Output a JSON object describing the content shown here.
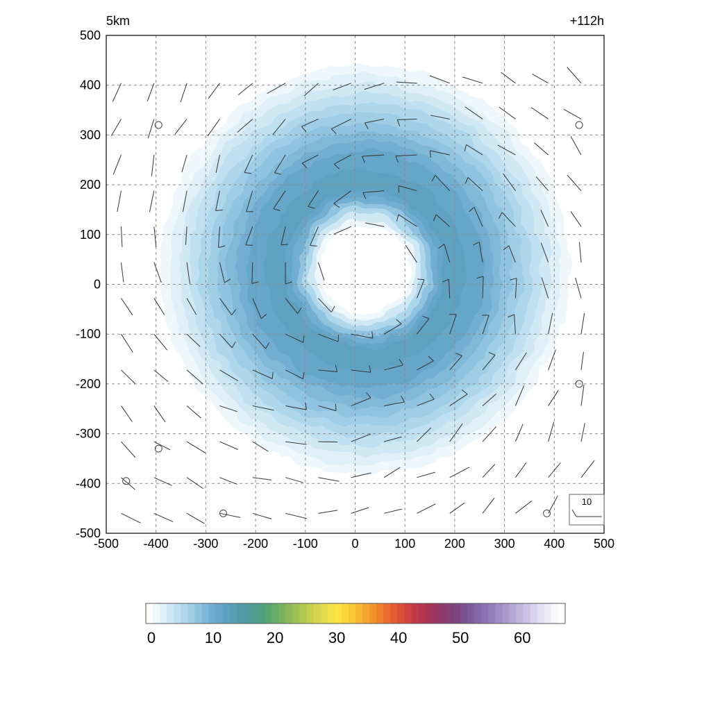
{
  "chart_data": {
    "type": "contour",
    "title_left": "5km",
    "title_right": "+112h",
    "xlim": [
      -500,
      500
    ],
    "ylim": [
      -500,
      500
    ],
    "x_ticks": [
      -500,
      -400,
      -300,
      -200,
      -100,
      0,
      100,
      200,
      300,
      400,
      500
    ],
    "y_ticks": [
      500,
      400,
      300,
      200,
      100,
      0,
      -100,
      -200,
      -300,
      -400,
      -500
    ],
    "grid": "dashed",
    "field": {
      "shape": "annular ring",
      "center": [
        20,
        30
      ],
      "eye_radius": 90,
      "peak_radius": 200,
      "peak_value": 13,
      "outer_radius": 430
    },
    "wind_barbs": "cyclonic circulation, counter-clockwise rotation around the center",
    "reference_barb": {
      "label": "10"
    },
    "colorbar": {
      "min": 0,
      "max": 66,
      "tick_labels": [
        "0",
        "10",
        "20",
        "30",
        "40",
        "50",
        "60"
      ],
      "colors": [
        "#ffffff",
        "#eef7fb",
        "#dff0f8",
        "#cfe8f4",
        "#bfe0f0",
        "#aed7eb",
        "#9ecde5",
        "#8fc3df",
        "#80b8d8",
        "#72aed1",
        "#66a6c9",
        "#5fa1c0",
        "#5a9db6",
        "#559aaa",
        "#4f9a9d",
        "#4e9c8f",
        "#509f80",
        "#59a571",
        "#66ab67",
        "#78b25f",
        "#8bb959",
        "#9ec156",
        "#b1c853",
        "#c4cf50",
        "#d6d54d",
        "#e6db4a",
        "#f3e147",
        "#fbe43f",
        "#fbd83a",
        "#fac936",
        "#f8b831",
        "#f5a52d",
        "#f2922b",
        "#ee7f2b",
        "#e96c2d",
        "#e25b32",
        "#d94e38",
        "#cf433f",
        "#c33a47",
        "#b6354f",
        "#a83357",
        "#9a3560",
        "#8d3a6a",
        "#833f76",
        "#7d4683",
        "#7b5090",
        "#7d5b9c",
        "#8367a8",
        "#8b73b2",
        "#947fbc",
        "#9e8cc5",
        "#a99ace",
        "#b4a8d6",
        "#c0b6de",
        "#ccc4e6",
        "#d8d2ed",
        "#e4e0f3",
        "#efecf8",
        "#f8f6fc",
        "#ffffff"
      ]
    },
    "circles": [
      {
        "x": -395,
        "y": 320
      },
      {
        "x": 450,
        "y": 320
      },
      {
        "x": 450,
        "y": -200
      },
      {
        "x": -395,
        "y": -330
      },
      {
        "x": -460,
        "y": -395
      },
      {
        "x": -265,
        "y": -460
      },
      {
        "x": 385,
        "y": -460
      }
    ]
  }
}
